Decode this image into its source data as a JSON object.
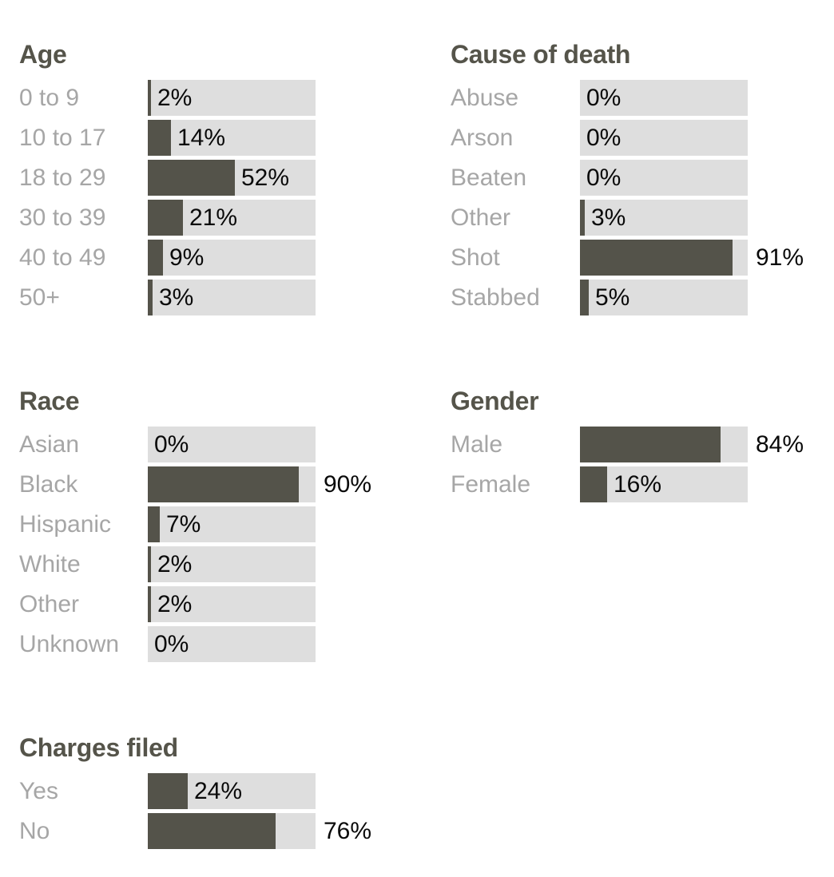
{
  "page": {
    "background": "#ffffff"
  },
  "colors": {
    "bar_fill": "#54534a",
    "bar_track": "#dedede",
    "title_text": "#55544a",
    "category_text": "#a6a6a6",
    "value_text": "#0a0a0a"
  },
  "chart_data": [
    {
      "type": "bar",
      "title": "Age",
      "orientation": "horizontal",
      "unit": "%",
      "xlim": [
        0,
        100
      ],
      "grid": false,
      "legend": false,
      "categories": [
        "0 to 9",
        "10 to 17",
        "18 to 29",
        "30 to 39",
        "40 to 49",
        "50+"
      ],
      "values": [
        2,
        14,
        52,
        21,
        9,
        3
      ],
      "value_labels": [
        "2%",
        "14%",
        "52%",
        "21%",
        "9%",
        "3%"
      ]
    },
    {
      "type": "bar",
      "title": "Cause of death",
      "orientation": "horizontal",
      "unit": "%",
      "xlim": [
        0,
        100
      ],
      "grid": false,
      "legend": false,
      "categories": [
        "Abuse",
        "Arson",
        "Beaten",
        "Other",
        "Shot",
        "Stabbed"
      ],
      "values": [
        0,
        0,
        0,
        3,
        91,
        5
      ],
      "value_labels": [
        "0%",
        "0%",
        "0%",
        "3%",
        "91%",
        "5%"
      ]
    },
    {
      "type": "bar",
      "title": "Race",
      "orientation": "horizontal",
      "unit": "%",
      "xlim": [
        0,
        100
      ],
      "grid": false,
      "legend": false,
      "categories": [
        "Asian",
        "Black",
        "Hispanic",
        "White",
        "Other",
        "Unknown"
      ],
      "values": [
        0,
        90,
        7,
        2,
        2,
        0
      ],
      "value_labels": [
        "0%",
        "90%",
        "7%",
        "2%",
        "2%",
        "0%"
      ]
    },
    {
      "type": "bar",
      "title": "Gender",
      "orientation": "horizontal",
      "unit": "%",
      "xlim": [
        0,
        100
      ],
      "grid": false,
      "legend": false,
      "categories": [
        "Male",
        "Female"
      ],
      "values": [
        84,
        16
      ],
      "value_labels": [
        "84%",
        "16%"
      ]
    },
    {
      "type": "bar",
      "title": "Charges filed",
      "orientation": "horizontal",
      "unit": "%",
      "xlim": [
        0,
        100
      ],
      "grid": false,
      "legend": false,
      "categories": [
        "Yes",
        "No"
      ],
      "values": [
        24,
        76
      ],
      "value_labels": [
        "24%",
        "76%"
      ]
    }
  ]
}
